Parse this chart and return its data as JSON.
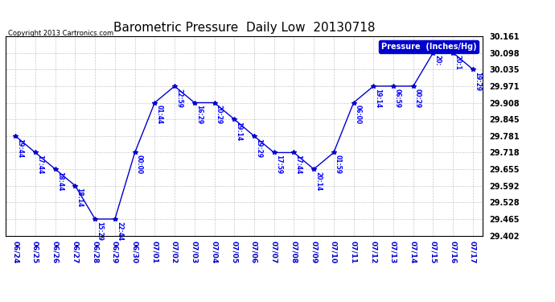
{
  "title": "Barometric Pressure  Daily Low  20130718",
  "copyright": "Copyright 2013 Cartronics.com",
  "legend_label": "Pressure  (Inches/Hg)",
  "x_labels": [
    "06/24",
    "06/25",
    "06/26",
    "06/27",
    "06/28",
    "06/29",
    "06/30",
    "07/01",
    "07/02",
    "07/03",
    "07/04",
    "07/05",
    "07/06",
    "07/07",
    "07/08",
    "07/09",
    "07/10",
    "07/11",
    "07/12",
    "07/13",
    "07/14",
    "07/15",
    "07/16",
    "07/17"
  ],
  "y_values": [
    29.781,
    29.718,
    29.655,
    29.592,
    29.465,
    29.465,
    29.718,
    29.908,
    29.971,
    29.908,
    29.908,
    29.845,
    29.781,
    29.718,
    29.718,
    29.655,
    29.718,
    29.908,
    29.971,
    29.971,
    29.971,
    30.098,
    30.098,
    30.035
  ],
  "point_labels": [
    "19:44",
    "17:44",
    "18:44",
    "18:14",
    "15:29",
    "22:44",
    "00:00",
    "01:44",
    "22:59",
    "16:29",
    "20:29",
    "19:14",
    "19:29",
    "17:59",
    "17:44",
    "20:14",
    "01:59",
    "06:00",
    "19:14",
    "06:59",
    "00:29",
    "20:",
    "20:1",
    "19:29"
  ],
  "ylim": [
    29.402,
    30.161
  ],
  "yticks": [
    29.402,
    29.465,
    29.528,
    29.592,
    29.655,
    29.718,
    29.781,
    29.845,
    29.908,
    29.971,
    30.035,
    30.098,
    30.161
  ],
  "line_color": "#0000cc",
  "marker_color": "#0000cc",
  "label_color": "#0000ff",
  "bg_color": "#ffffff",
  "grid_color": "#bbbbbb",
  "title_color": "#000000",
  "legend_bg": "#0000cc",
  "legend_text_color": "#ffffff",
  "copyright_color": "#000000",
  "figwidth": 6.9,
  "figheight": 3.75,
  "dpi": 100
}
